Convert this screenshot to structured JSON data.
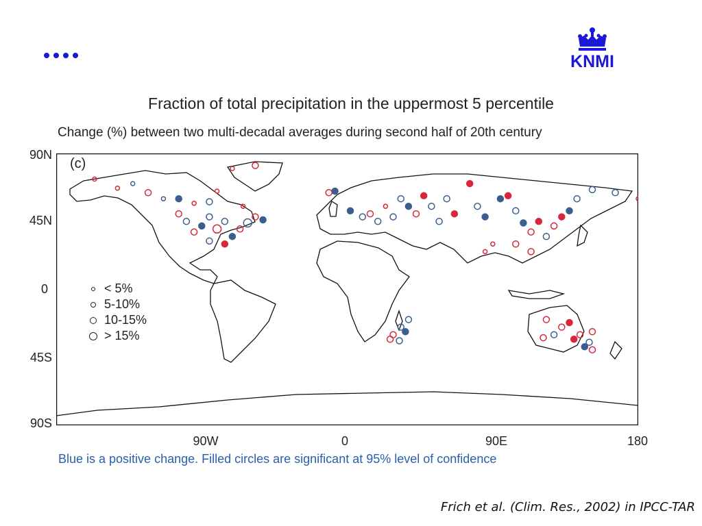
{
  "slide": {
    "nav_icon": "four-dots-icon",
    "logo": {
      "text": "KNMI",
      "icon": "crown-icon",
      "color": "#1a1ad6"
    }
  },
  "chart_data": {
    "type": "map",
    "title": "Fraction of total precipitation in the uppermost 5 percentile",
    "subtitle": "Change (%) between two multi-decadal averages during second half of 20th century",
    "panel_label": "(c)",
    "y_ticks": [
      "90N",
      "45N",
      "0",
      "45S",
      "90S"
    ],
    "x_ticks": [
      "90W",
      "0",
      "90E",
      "180"
    ],
    "legend": [
      {
        "label": "< 5%",
        "size": "tiny"
      },
      {
        "label": "5-10%",
        "size": "small"
      },
      {
        "label": "10-15%",
        "size": "medium"
      },
      {
        "label": "> 15%",
        "size": "large"
      }
    ],
    "colors": {
      "positive": "#3a5f8f",
      "negative": "#d6283a",
      "coast": "#111111"
    },
    "stations": [
      {
        "lon": -175,
        "lat": 73,
        "c": "red",
        "s": 2,
        "f": false
      },
      {
        "lon": -160,
        "lat": 67,
        "c": "red",
        "s": 2,
        "f": false
      },
      {
        "lon": -150,
        "lat": 70,
        "c": "blue",
        "s": 2,
        "f": false
      },
      {
        "lon": -140,
        "lat": 64,
        "c": "red",
        "s": 3,
        "f": false
      },
      {
        "lon": -130,
        "lat": 60,
        "c": "blue",
        "s": 2,
        "f": false
      },
      {
        "lon": -120,
        "lat": 60,
        "c": "blue",
        "s": 3,
        "f": true
      },
      {
        "lon": -110,
        "lat": 57,
        "c": "red",
        "s": 2,
        "f": false
      },
      {
        "lon": -100,
        "lat": 58,
        "c": "blue",
        "s": 3,
        "f": false
      },
      {
        "lon": -120,
        "lat": 50,
        "c": "red",
        "s": 3,
        "f": false
      },
      {
        "lon": -115,
        "lat": 45,
        "c": "blue",
        "s": 3,
        "f": false
      },
      {
        "lon": -110,
        "lat": 38,
        "c": "red",
        "s": 3,
        "f": false
      },
      {
        "lon": -105,
        "lat": 42,
        "c": "blue",
        "s": 3,
        "f": true
      },
      {
        "lon": -100,
        "lat": 48,
        "c": "blue",
        "s": 3,
        "f": false
      },
      {
        "lon": -95,
        "lat": 40,
        "c": "red",
        "s": 4,
        "f": false
      },
      {
        "lon": -90,
        "lat": 45,
        "c": "blue",
        "s": 3,
        "f": false
      },
      {
        "lon": -85,
        "lat": 35,
        "c": "blue",
        "s": 3,
        "f": true
      },
      {
        "lon": -80,
        "lat": 40,
        "c": "red",
        "s": 3,
        "f": false
      },
      {
        "lon": -75,
        "lat": 44,
        "c": "blue",
        "s": 4,
        "f": false
      },
      {
        "lon": -70,
        "lat": 48,
        "c": "red",
        "s": 3,
        "f": false
      },
      {
        "lon": -65,
        "lat": 46,
        "c": "blue",
        "s": 3,
        "f": true
      },
      {
        "lon": -90,
        "lat": 30,
        "c": "red",
        "s": 3,
        "f": true
      },
      {
        "lon": -100,
        "lat": 32,
        "c": "blue",
        "s": 3,
        "f": false
      },
      {
        "lon": -78,
        "lat": 55,
        "c": "red",
        "s": 2,
        "f": false
      },
      {
        "lon": -95,
        "lat": 65,
        "c": "red",
        "s": 2,
        "f": false
      },
      {
        "lon": -70,
        "lat": 82,
        "c": "red",
        "s": 3,
        "f": false
      },
      {
        "lon": -85,
        "lat": 80,
        "c": "red",
        "s": 2,
        "f": false
      },
      {
        "lon": -18,
        "lat": 65,
        "c": "blue",
        "s": 3,
        "f": true
      },
      {
        "lon": -22,
        "lat": 64,
        "c": "red",
        "s": 3,
        "f": false
      },
      {
        "lon": -8,
        "lat": 52,
        "c": "blue",
        "s": 3,
        "f": true
      },
      {
        "lon": 0,
        "lat": 48,
        "c": "blue",
        "s": 3,
        "f": false
      },
      {
        "lon": 5,
        "lat": 50,
        "c": "red",
        "s": 3,
        "f": false
      },
      {
        "lon": 10,
        "lat": 45,
        "c": "blue",
        "s": 3,
        "f": false
      },
      {
        "lon": 15,
        "lat": 55,
        "c": "red",
        "s": 2,
        "f": false
      },
      {
        "lon": 20,
        "lat": 48,
        "c": "blue",
        "s": 3,
        "f": false
      },
      {
        "lon": 25,
        "lat": 60,
        "c": "blue",
        "s": 3,
        "f": false
      },
      {
        "lon": 30,
        "lat": 55,
        "c": "blue",
        "s": 3,
        "f": true
      },
      {
        "lon": 35,
        "lat": 50,
        "c": "red",
        "s": 3,
        "f": false
      },
      {
        "lon": 40,
        "lat": 62,
        "c": "red",
        "s": 3,
        "f": true
      },
      {
        "lon": 45,
        "lat": 55,
        "c": "blue",
        "s": 3,
        "f": false
      },
      {
        "lon": 50,
        "lat": 45,
        "c": "blue",
        "s": 3,
        "f": false
      },
      {
        "lon": 55,
        "lat": 60,
        "c": "blue",
        "s": 3,
        "f": false
      },
      {
        "lon": 60,
        "lat": 50,
        "c": "red",
        "s": 3,
        "f": true
      },
      {
        "lon": 70,
        "lat": 70,
        "c": "red",
        "s": 3,
        "f": true
      },
      {
        "lon": 75,
        "lat": 55,
        "c": "blue",
        "s": 3,
        "f": false
      },
      {
        "lon": 80,
        "lat": 48,
        "c": "blue",
        "s": 3,
        "f": true
      },
      {
        "lon": 90,
        "lat": 60,
        "c": "blue",
        "s": 3,
        "f": true
      },
      {
        "lon": 95,
        "lat": 62,
        "c": "red",
        "s": 3,
        "f": true
      },
      {
        "lon": 100,
        "lat": 52,
        "c": "blue",
        "s": 3,
        "f": false
      },
      {
        "lon": 105,
        "lat": 44,
        "c": "blue",
        "s": 3,
        "f": true
      },
      {
        "lon": 110,
        "lat": 38,
        "c": "red",
        "s": 3,
        "f": false
      },
      {
        "lon": 115,
        "lat": 45,
        "c": "red",
        "s": 3,
        "f": true
      },
      {
        "lon": 120,
        "lat": 35,
        "c": "blue",
        "s": 3,
        "f": false
      },
      {
        "lon": 125,
        "lat": 42,
        "c": "red",
        "s": 3,
        "f": false
      },
      {
        "lon": 130,
        "lat": 48,
        "c": "red",
        "s": 3,
        "f": true
      },
      {
        "lon": 135,
        "lat": 52,
        "c": "blue",
        "s": 3,
        "f": true
      },
      {
        "lon": 140,
        "lat": 60,
        "c": "blue",
        "s": 3,
        "f": false
      },
      {
        "lon": 150,
        "lat": 66,
        "c": "blue",
        "s": 3,
        "f": false
      },
      {
        "lon": 165,
        "lat": 64,
        "c": "blue",
        "s": 3,
        "f": false
      },
      {
        "lon": 85,
        "lat": 30,
        "c": "red",
        "s": 2,
        "f": false
      },
      {
        "lon": 80,
        "lat": 25,
        "c": "red",
        "s": 2,
        "f": false
      },
      {
        "lon": 100,
        "lat": 30,
        "c": "red",
        "s": 3,
        "f": false
      },
      {
        "lon": 110,
        "lat": 25,
        "c": "red",
        "s": 3,
        "f": false
      },
      {
        "lon": 25,
        "lat": -25,
        "c": "blue",
        "s": 3,
        "f": false
      },
      {
        "lon": 28,
        "lat": -28,
        "c": "blue",
        "s": 3,
        "f": true
      },
      {
        "lon": 20,
        "lat": -30,
        "c": "red",
        "s": 3,
        "f": false
      },
      {
        "lon": 30,
        "lat": -20,
        "c": "blue",
        "s": 3,
        "f": false
      },
      {
        "lon": 18,
        "lat": -33,
        "c": "red",
        "s": 3,
        "f": false
      },
      {
        "lon": 24,
        "lat": -34,
        "c": "blue",
        "s": 3,
        "f": false
      },
      {
        "lon": 120,
        "lat": -20,
        "c": "red",
        "s": 3,
        "f": false
      },
      {
        "lon": 125,
        "lat": -30,
        "c": "blue",
        "s": 3,
        "f": false
      },
      {
        "lon": 130,
        "lat": -25,
        "c": "red",
        "s": 3,
        "f": false
      },
      {
        "lon": 135,
        "lat": -22,
        "c": "red",
        "s": 3,
        "f": true
      },
      {
        "lon": 138,
        "lat": -33,
        "c": "red",
        "s": 3,
        "f": true
      },
      {
        "lon": 142,
        "lat": -30,
        "c": "red",
        "s": 3,
        "f": false
      },
      {
        "lon": 145,
        "lat": -38,
        "c": "blue",
        "s": 3,
        "f": true
      },
      {
        "lon": 150,
        "lat": -28,
        "c": "red",
        "s": 3,
        "f": false
      },
      {
        "lon": 148,
        "lat": -35,
        "c": "blue",
        "s": 3,
        "f": false
      },
      {
        "lon": 118,
        "lat": -32,
        "c": "red",
        "s": 3,
        "f": false
      },
      {
        "lon": 150,
        "lat": -40,
        "c": "red",
        "s": 3,
        "f": false
      },
      {
        "lon": 180,
        "lat": 60,
        "c": "red",
        "s": 2,
        "f": false
      }
    ]
  },
  "caption": "Blue is a positive change. Filled circles are significant at 95% level of confidence",
  "citation": "Frich et al. (Clim. Res., 2002) in IPCC-TAR"
}
